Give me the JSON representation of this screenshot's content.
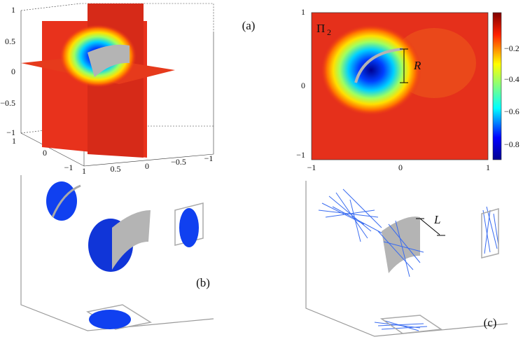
{
  "panel_a": {
    "label": "(a)",
    "z_ticks": [
      "1",
      "0.5",
      "0",
      "−0.5",
      "−1"
    ],
    "y_ticks": [
      "1",
      "0",
      "−1"
    ],
    "x_ticks": [
      "1",
      "0.5",
      "0",
      "−0.5",
      "−1"
    ]
  },
  "panel_pi2": {
    "title_main": "Π",
    "title_sub": "2",
    "annotation": "R",
    "y_ticks": [
      "1",
      "0",
      "−1"
    ],
    "x_ticks": [
      "−1",
      "0",
      "1"
    ],
    "colorbar_ticks": [
      "−0.2",
      "−0.4",
      "−0.6",
      "−0.8"
    ]
  },
  "panel_b": {
    "label": "(b)"
  },
  "panel_c": {
    "label": "(c)",
    "annotation": "L"
  }
}
